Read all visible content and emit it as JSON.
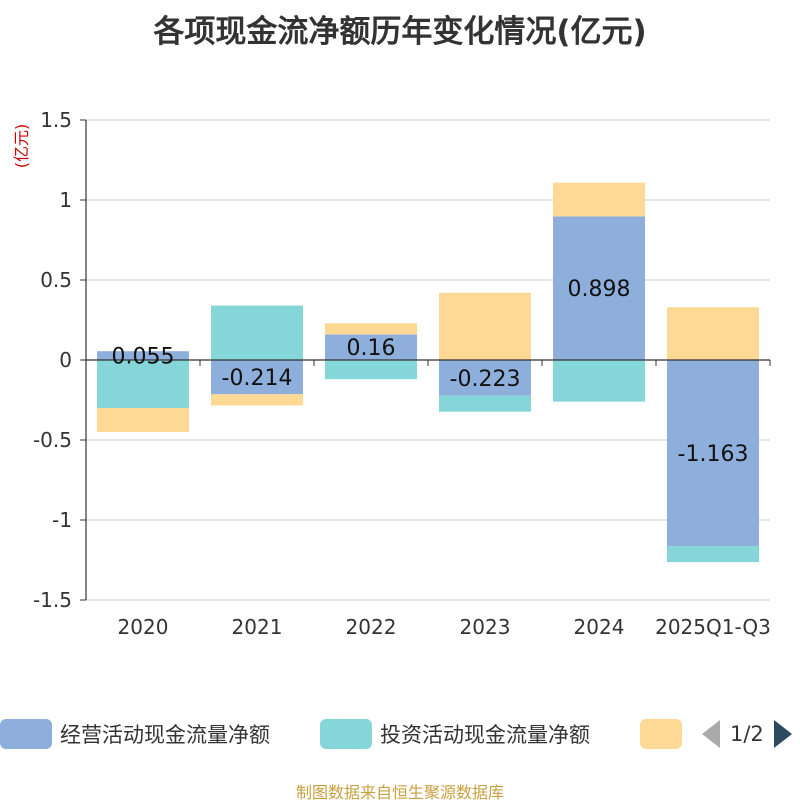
{
  "chart_data": {
    "type": "bar",
    "stacked": true,
    "title": "各项现金流净额历年变化情况(亿元)",
    "ylabel": "(亿元)",
    "ylim": [
      -1.5,
      1.5
    ],
    "yticks": [
      1.5,
      1,
      0.5,
      0,
      -0.5,
      -1,
      -1.5
    ],
    "ytick_labels": [
      "1.5",
      "1",
      "0.5",
      "0",
      "-0.5",
      "-1",
      "-1.5"
    ],
    "categories": [
      "2020",
      "2021",
      "2022",
      "2023",
      "2024",
      "2025Q1-Q3"
    ],
    "series": [
      {
        "name": "经营活动现金流量净额",
        "color": "#8eaedb",
        "values": [
          0.055,
          -0.214,
          0.16,
          -0.223,
          0.898,
          -1.163
        ],
        "show_labels": true
      },
      {
        "name": "投资活动现金流量净额",
        "color": "#85d6d8",
        "values": [
          -0.3,
          0.34,
          -0.12,
          -0.1,
          -0.26,
          -0.1
        ],
        "show_labels": false
      },
      {
        "name": "",
        "color": "#fed995",
        "values": [
          -0.15,
          -0.07,
          0.07,
          0.42,
          0.21,
          0.33
        ],
        "show_labels": false
      }
    ],
    "grid": true
  },
  "legend": {
    "items": [
      "经营活动现金流量净额",
      "投资活动现金流量净额",
      ""
    ],
    "page": "1/2"
  },
  "source": "制图数据来自恒生聚源数据库"
}
